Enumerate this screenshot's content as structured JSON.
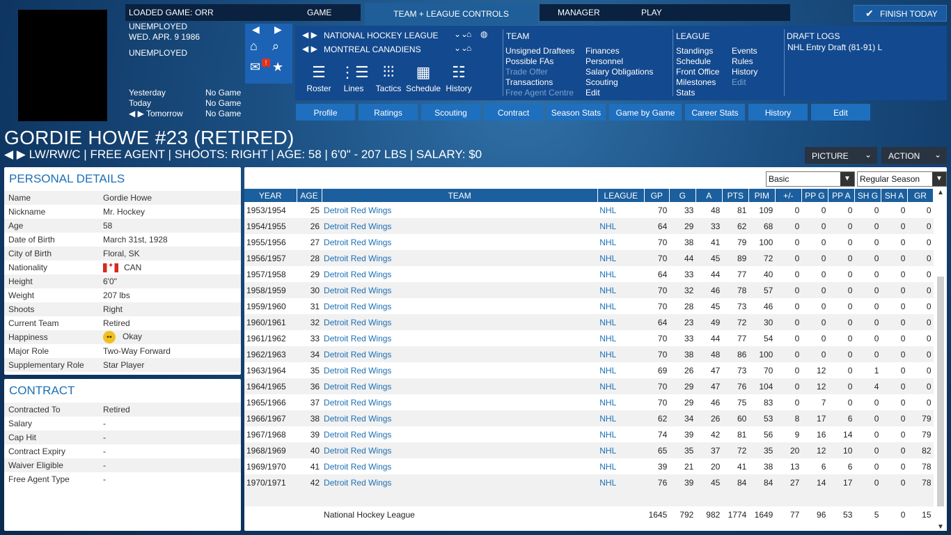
{
  "header": {
    "loaded_game_label": "LOADED GAME:",
    "loaded_game_value": "ORR",
    "tab_game": "GAME",
    "tab_active": "TEAM + LEAGUE CONTROLS",
    "tab_manager": "MANAGER",
    "tab_play": "PLAY",
    "finish_today": "FINISH TODAY"
  },
  "status": {
    "line1": "UNEMPLOYED",
    "date": "WED. APR. 9 1986",
    "line3": "UNEMPLOYED",
    "schedule": [
      {
        "label": "Yesterday",
        "value": "No Game"
      },
      {
        "label": "Today",
        "value": "No Game"
      },
      {
        "label": "Tomorrow",
        "value": "No Game"
      }
    ]
  },
  "league_selector": {
    "league": "NATIONAL HOCKEY LEAGUE",
    "team": "MONTREAL CANADIENS"
  },
  "tools": [
    "Roster",
    "Lines",
    "Tactics",
    "Schedule",
    "History"
  ],
  "team_menu": {
    "title": "TEAM",
    "col1": [
      "Unsigned Draftees",
      "Possible FAs",
      "Trade Offer",
      "Transactions",
      "Free Agent Centre"
    ],
    "col2": [
      "Finances",
      "Personnel",
      "Salary Obligations",
      "Scouting",
      "Edit"
    ]
  },
  "league_menu": {
    "title": "LEAGUE",
    "col1": [
      "Standings",
      "Schedule",
      "Front Office",
      "Milestones",
      "Stats"
    ],
    "col2": [
      "Events",
      "Rules",
      "History",
      "Edit"
    ]
  },
  "draft_logs": {
    "title": "DRAFT LOGS",
    "item": "NHL Entry Draft (81-91) L"
  },
  "subnav": [
    "Profile",
    "Ratings",
    "Scouting",
    "Contract",
    "Season Stats",
    "Game by Game",
    "Career Stats",
    "History",
    "Edit"
  ],
  "player": {
    "name": "GORDIE HOWE #23 (RETIRED)",
    "subline": "LW/RW/C | FREE AGENT | SHOOTS: RIGHT | AGE: 58 | 6'0\" - 207 LBS | SALARY: $0",
    "picture_btn": "PICTURE",
    "action_btn": "ACTION"
  },
  "personal": {
    "title": "PERSONAL DETAILS",
    "rows": [
      {
        "k": "Name",
        "v": "Gordie Howe"
      },
      {
        "k": "Nickname",
        "v": "Mr. Hockey"
      },
      {
        "k": "Age",
        "v": "58"
      },
      {
        "k": "Date of Birth",
        "v": "March 31st, 1928"
      },
      {
        "k": "City of Birth",
        "v": "Floral, SK"
      },
      {
        "k": "Nationality",
        "v": "CAN"
      },
      {
        "k": "Height",
        "v": "6'0\""
      },
      {
        "k": "Weight",
        "v": "207 lbs"
      },
      {
        "k": "Shoots",
        "v": "Right"
      },
      {
        "k": "Current Team",
        "v": "Retired"
      },
      {
        "k": "Happiness",
        "v": "Okay"
      },
      {
        "k": "Major Role",
        "v": "Two-Way Forward"
      },
      {
        "k": "Supplementary Role",
        "v": "Star Player"
      }
    ]
  },
  "contract": {
    "title": "CONTRACT",
    "rows": [
      {
        "k": "Contracted To",
        "v": "Retired"
      },
      {
        "k": "Salary",
        "v": "-"
      },
      {
        "k": "Cap Hit",
        "v": "-"
      },
      {
        "k": "Contract Expiry",
        "v": "-"
      },
      {
        "k": "Waiver Eligible",
        "v": "-"
      },
      {
        "k": "Free Agent Type",
        "v": "-"
      }
    ]
  },
  "filters": {
    "view": "Basic",
    "season": "Regular Season"
  },
  "stats": {
    "headers": [
      "YEAR",
      "AGE",
      "TEAM",
      "LEAGUE",
      "GP",
      "G",
      "A",
      "PTS",
      "PIM",
      "+/-",
      "PP G",
      "PP A",
      "SH G",
      "SH A",
      "GR"
    ],
    "rows": [
      [
        "1953/1954",
        "25",
        "Detroit Red Wings",
        "NHL",
        "70",
        "33",
        "48",
        "81",
        "109",
        "0",
        "0",
        "0",
        "0",
        "0",
        "0"
      ],
      [
        "1954/1955",
        "26",
        "Detroit Red Wings",
        "NHL",
        "64",
        "29",
        "33",
        "62",
        "68",
        "0",
        "0",
        "0",
        "0",
        "0",
        "0"
      ],
      [
        "1955/1956",
        "27",
        "Detroit Red Wings",
        "NHL",
        "70",
        "38",
        "41",
        "79",
        "100",
        "0",
        "0",
        "0",
        "0",
        "0",
        "0"
      ],
      [
        "1956/1957",
        "28",
        "Detroit Red Wings",
        "NHL",
        "70",
        "44",
        "45",
        "89",
        "72",
        "0",
        "0",
        "0",
        "0",
        "0",
        "0"
      ],
      [
        "1957/1958",
        "29",
        "Detroit Red Wings",
        "NHL",
        "64",
        "33",
        "44",
        "77",
        "40",
        "0",
        "0",
        "0",
        "0",
        "0",
        "0"
      ],
      [
        "1958/1959",
        "30",
        "Detroit Red Wings",
        "NHL",
        "70",
        "32",
        "46",
        "78",
        "57",
        "0",
        "0",
        "0",
        "0",
        "0",
        "0"
      ],
      [
        "1959/1960",
        "31",
        "Detroit Red Wings",
        "NHL",
        "70",
        "28",
        "45",
        "73",
        "46",
        "0",
        "0",
        "0",
        "0",
        "0",
        "0"
      ],
      [
        "1960/1961",
        "32",
        "Detroit Red Wings",
        "NHL",
        "64",
        "23",
        "49",
        "72",
        "30",
        "0",
        "0",
        "0",
        "0",
        "0",
        "0"
      ],
      [
        "1961/1962",
        "33",
        "Detroit Red Wings",
        "NHL",
        "70",
        "33",
        "44",
        "77",
        "54",
        "0",
        "0",
        "0",
        "0",
        "0",
        "0"
      ],
      [
        "1962/1963",
        "34",
        "Detroit Red Wings",
        "NHL",
        "70",
        "38",
        "48",
        "86",
        "100",
        "0",
        "0",
        "0",
        "0",
        "0",
        "0"
      ],
      [
        "1963/1964",
        "35",
        "Detroit Red Wings",
        "NHL",
        "69",
        "26",
        "47",
        "73",
        "70",
        "0",
        "12",
        "0",
        "1",
        "0",
        "0"
      ],
      [
        "1964/1965",
        "36",
        "Detroit Red Wings",
        "NHL",
        "70",
        "29",
        "47",
        "76",
        "104",
        "0",
        "12",
        "0",
        "4",
        "0",
        "0"
      ],
      [
        "1965/1966",
        "37",
        "Detroit Red Wings",
        "NHL",
        "70",
        "29",
        "46",
        "75",
        "83",
        "0",
        "7",
        "0",
        "0",
        "0",
        "0"
      ],
      [
        "1966/1967",
        "38",
        "Detroit Red Wings",
        "NHL",
        "62",
        "34",
        "26",
        "60",
        "53",
        "8",
        "17",
        "6",
        "0",
        "0",
        "79"
      ],
      [
        "1967/1968",
        "39",
        "Detroit Red Wings",
        "NHL",
        "74",
        "39",
        "42",
        "81",
        "56",
        "9",
        "16",
        "14",
        "0",
        "0",
        "79"
      ],
      [
        "1968/1969",
        "40",
        "Detroit Red Wings",
        "NHL",
        "65",
        "35",
        "37",
        "72",
        "35",
        "20",
        "12",
        "10",
        "0",
        "0",
        "82"
      ],
      [
        "1969/1970",
        "41",
        "Detroit Red Wings",
        "NHL",
        "39",
        "21",
        "20",
        "41",
        "38",
        "13",
        "6",
        "6",
        "0",
        "0",
        "78"
      ],
      [
        "1970/1971",
        "42",
        "Detroit Red Wings",
        "NHL",
        "76",
        "39",
        "45",
        "84",
        "84",
        "27",
        "14",
        "17",
        "0",
        "0",
        "78"
      ]
    ],
    "total_row": [
      "",
      "",
      "National Hockey League",
      "",
      "1645",
      "792",
      "982",
      "1774",
      "1649",
      "77",
      "96",
      "53",
      "5",
      "0",
      "15"
    ]
  },
  "colors": {
    "accent": "#1b6fb5",
    "header_bar": "#1b5f9e",
    "button": "#1f6fbf"
  }
}
